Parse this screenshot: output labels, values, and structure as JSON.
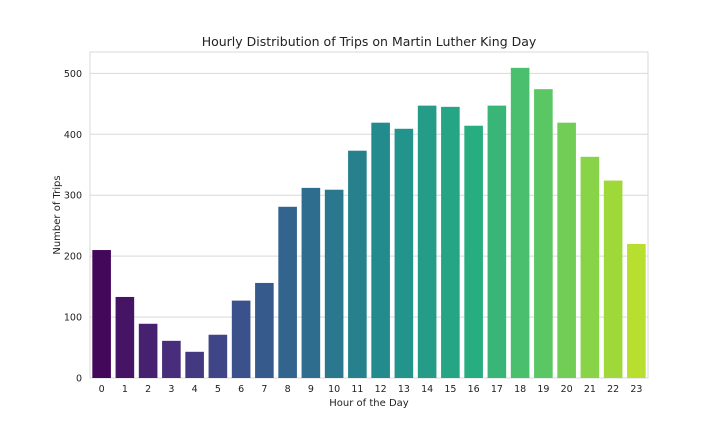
{
  "chart_data": {
    "type": "bar",
    "title": "Hourly Distribution of Trips on Martin Luther King Day",
    "xlabel": "Hour of the Day",
    "ylabel": "Number of Trips",
    "categories": [
      "0",
      "1",
      "2",
      "3",
      "4",
      "5",
      "6",
      "7",
      "8",
      "9",
      "10",
      "11",
      "12",
      "13",
      "14",
      "15",
      "16",
      "17",
      "18",
      "19",
      "20",
      "21",
      "22",
      "23"
    ],
    "values": [
      210,
      133,
      89,
      61,
      43,
      71,
      127,
      156,
      281,
      312,
      309,
      373,
      419,
      409,
      447,
      445,
      414,
      447,
      509,
      474,
      419,
      363,
      324,
      220
    ],
    "ylim": [
      0,
      535
    ],
    "yticks": [
      0,
      100,
      200,
      300,
      400,
      500
    ],
    "grid": "horizontal",
    "palette": "viridis"
  }
}
